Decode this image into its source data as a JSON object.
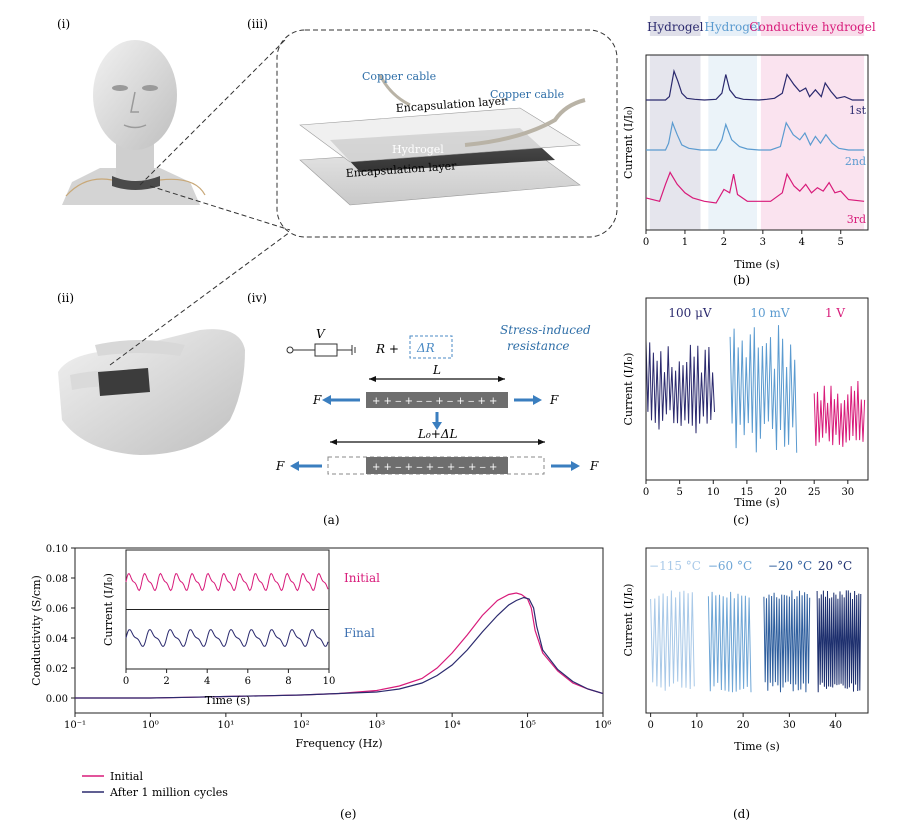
{
  "panel_labels": {
    "i": "(i)",
    "ii": "(ii)",
    "iii": "(iii)",
    "iv": "(iv)",
    "a": "(a)",
    "b": "(b)",
    "c": "(c)",
    "d": "(d)",
    "e": "(e)"
  },
  "diagram": {
    "copper_cable_left": "Copper cable",
    "copper_cable_right": "Copper cable",
    "encapsulation_top": "Encapsulation layer",
    "hydrogel": "Hydrogel",
    "encapsulation_bottom": "Encapsulation layer",
    "circuit_v": "V",
    "circuit_r": "R +",
    "delta_r": "ΔR",
    "stress_line1": "Stress-induced",
    "stress_line2": "resistance",
    "length_top": "L",
    "length_bottom": "L₀+ΔL",
    "force": "F"
  },
  "colors": {
    "dark": "#2b2a6e",
    "mid": "#5b9bd0",
    "pink": "#d81b7a",
    "deep": "#1f3f7a",
    "lightblue": "#a9c9e8"
  },
  "chart_data": [
    {
      "id": "b",
      "type": "line",
      "xlabel": "Time (s)",
      "ylabel": "Current (I/I₀)",
      "xlim": [
        0,
        5.7
      ],
      "xticks": [
        0,
        1,
        2,
        3,
        4,
        5
      ],
      "bands": [
        {
          "label": "Hydrogel",
          "from": 0.1,
          "to": 1.4,
          "color": "#2b2a6e"
        },
        {
          "label": "Hydrogel",
          "from": 1.6,
          "to": 2.85,
          "color": "#5b9bd0"
        },
        {
          "label": "Conductive hydrogel",
          "from": 2.95,
          "to": 5.6,
          "color": "#d81b7a"
        }
      ],
      "series": [
        {
          "name": "1st",
          "color": "#2b2a6e",
          "x": [
            0,
            0.5,
            0.6,
            0.72,
            0.82,
            0.92,
            1.05,
            1.25,
            1.5,
            1.8,
            1.95,
            2.05,
            2.15,
            2.3,
            2.5,
            2.9,
            3.1,
            3.3,
            3.5,
            3.62,
            3.8,
            3.95,
            4.1,
            4.2,
            4.35,
            4.5,
            4.6,
            4.75,
            4.9,
            5.1,
            5.3,
            5.6
          ],
          "y": [
            0,
            0,
            0.1,
            0.85,
            0.55,
            0.2,
            0.05,
            0.02,
            0,
            0.02,
            0.2,
            0.75,
            0.3,
            0.08,
            0.02,
            0,
            0.02,
            0.05,
            0.2,
            0.75,
            0.45,
            0.25,
            0.35,
            0.1,
            0.3,
            0.1,
            0.5,
            0.25,
            0.05,
            0.1,
            0,
            0
          ]
        },
        {
          "name": "2nd",
          "color": "#5b9bd0",
          "x": [
            0,
            0.5,
            0.58,
            0.68,
            0.8,
            0.92,
            1.1,
            1.4,
            1.8,
            1.95,
            2.05,
            2.2,
            2.4,
            2.6,
            2.9,
            3.2,
            3.45,
            3.6,
            3.78,
            3.95,
            4.08,
            4.22,
            4.35,
            4.48,
            4.62,
            4.78,
            4.95,
            5.2,
            5.6
          ],
          "y": [
            0,
            0,
            0.2,
            0.8,
            0.45,
            0.15,
            0.05,
            0,
            0,
            0.3,
            0.75,
            0.3,
            0.1,
            0.03,
            0,
            0,
            0.1,
            0.8,
            0.45,
            0.3,
            0.5,
            0.15,
            0.4,
            0.2,
            0.45,
            0.2,
            0.05,
            0,
            0
          ]
        },
        {
          "name": "3rd",
          "color": "#d81b7a",
          "x": [
            0,
            0.35,
            0.5,
            0.62,
            0.8,
            1.0,
            1.2,
            1.5,
            1.8,
            2.0,
            2.15,
            2.25,
            2.35,
            2.6,
            2.9,
            3.2,
            3.5,
            3.62,
            3.8,
            3.95,
            4.1,
            4.25,
            4.4,
            4.55,
            4.7,
            4.85,
            5.0,
            5.2,
            5.6
          ],
          "y": [
            0.15,
            0.05,
            0.55,
            0.9,
            0.55,
            0.3,
            0.15,
            0.05,
            0,
            0.4,
            0.3,
            0.85,
            0.25,
            0.05,
            0.05,
            0.05,
            0.3,
            0.85,
            0.5,
            0.35,
            0.55,
            0.3,
            0.45,
            0.35,
            0.6,
            0.3,
            0.35,
            0.1,
            0.05
          ]
        }
      ]
    },
    {
      "id": "c",
      "type": "line",
      "xlabel": "Time (s)",
      "ylabel": "Current (I/I₀)",
      "xlim": [
        0,
        33
      ],
      "xticks": [
        0,
        5,
        10,
        15,
        20,
        25,
        30
      ],
      "series": [
        {
          "name": "100 μV",
          "color": "#2b2a6e",
          "t0": 0,
          "t1": 10.2,
          "period": 0.55,
          "lo": 0.25,
          "hi": 0.85
        },
        {
          "name": "10 mV",
          "color": "#5b9bd0",
          "t0": 12.5,
          "t1": 22.5,
          "period": 0.6,
          "lo": 0.12,
          "hi": 0.95
        },
        {
          "name": "1 V",
          "color": "#d81b7a",
          "t0": 25,
          "t1": 32.7,
          "period": 0.5,
          "lo": 0.15,
          "hi": 0.6
        }
      ]
    },
    {
      "id": "d",
      "type": "line",
      "xlabel": "Time (s)",
      "ylabel": "Current (I/I₀)",
      "xlim": [
        -1,
        47
      ],
      "xticks": [
        0,
        10,
        20,
        30,
        40
      ],
      "series": [
        {
          "name": "−115 °C",
          "color": "#a9c9e8",
          "t0": 0,
          "t1": 9.5,
          "period": 0.9
        },
        {
          "name": "−60 °C",
          "color": "#6fa6d6",
          "t0": 12.5,
          "t1": 22,
          "period": 0.8
        },
        {
          "name": "−20 °C",
          "color": "#2f5f9e",
          "t0": 24.5,
          "t1": 34.5,
          "period": 0.55
        },
        {
          "name": "20 °C",
          "color": "#1d2f6e",
          "t0": 36,
          "t1": 45.5,
          "period": 0.45
        }
      ]
    },
    {
      "id": "e",
      "type": "line",
      "xlabel": "Frequency (Hz)",
      "ylabel": "Conductivity (S/cm)",
      "xscale": "log",
      "xlim": [
        0.1,
        1000000
      ],
      "ylim": [
        -0.01,
        0.1
      ],
      "yticks": [
        0.0,
        0.02,
        0.04,
        0.06,
        0.08,
        0.1
      ],
      "xtick_labels": [
        "10⁻¹",
        "10⁰",
        "10¹",
        "10²",
        "10³",
        "10⁴",
        "10⁵",
        "10⁶"
      ],
      "series": [
        {
          "name": "Initial",
          "color": "#d81b7a",
          "logx": [
            -1,
            0,
            0.5,
            1,
            1.5,
            2,
            2.5,
            3,
            3.3,
            3.6,
            3.8,
            4,
            4.2,
            4.4,
            4.6,
            4.75,
            4.85,
            4.92,
            5,
            5.05,
            5.1,
            5.2,
            5.4,
            5.6,
            5.8,
            6
          ],
          "y": [
            0,
            0,
            0.0005,
            0.001,
            0.0015,
            0.002,
            0.003,
            0.005,
            0.008,
            0.013,
            0.02,
            0.03,
            0.042,
            0.055,
            0.065,
            0.069,
            0.07,
            0.069,
            0.066,
            0.06,
            0.045,
            0.03,
            0.018,
            0.01,
            0.006,
            0.003
          ]
        },
        {
          "name": "After 1 million cycles",
          "color": "#2b2a6e",
          "logx": [
            -1,
            0,
            0.5,
            1,
            1.5,
            2,
            2.5,
            3,
            3.3,
            3.6,
            3.8,
            4,
            4.2,
            4.4,
            4.6,
            4.75,
            4.85,
            4.95,
            5.02,
            5.08,
            5.12,
            5.2,
            5.4,
            5.6,
            5.8,
            6
          ],
          "y": [
            0,
            0,
            0.0005,
            0.001,
            0.0015,
            0.002,
            0.003,
            0.004,
            0.006,
            0.01,
            0.015,
            0.022,
            0.032,
            0.044,
            0.055,
            0.062,
            0.065,
            0.067,
            0.066,
            0.06,
            0.048,
            0.032,
            0.019,
            0.011,
            0.006,
            0.003
          ]
        }
      ],
      "legend": [
        "Initial",
        "After 1 million cycles"
      ],
      "inset": {
        "xlabel": "Time (s)",
        "ylabel": "Current (I/I₀)",
        "xlim": [
          0,
          10
        ],
        "xticks": [
          0,
          2,
          4,
          6,
          8,
          10
        ],
        "series": [
          {
            "name": "Initial",
            "color": "#d81b7a",
            "period": 0.78
          },
          {
            "name": "Final",
            "color": "#2b2a6e",
            "period": 1.0
          }
        ]
      }
    }
  ]
}
